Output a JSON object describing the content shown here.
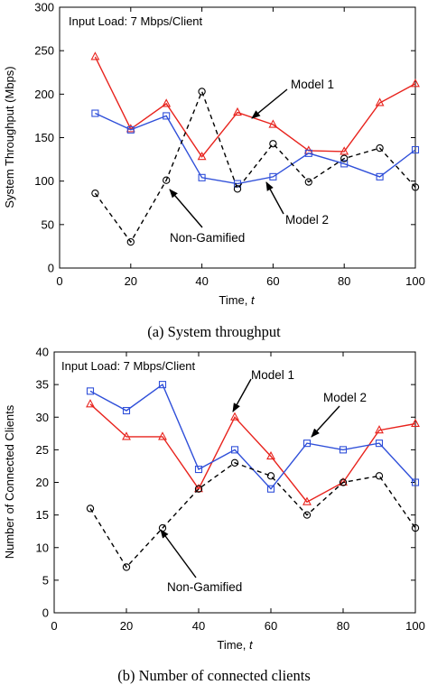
{
  "chart_data": [
    {
      "type": "line",
      "caption": "(a) System throughput",
      "xlabel": "Time, ",
      "xlabel_var": "t",
      "ylabel": "System Throughput (Mbps)",
      "xlim": [
        0,
        100
      ],
      "ylim": [
        0,
        300
      ],
      "xticks": [
        0,
        20,
        40,
        60,
        80,
        100
      ],
      "yticks": [
        0,
        50,
        100,
        150,
        200,
        250,
        300
      ],
      "grid": false,
      "inset_label": "Input Load: 7 Mbps/Client",
      "x": [
        10,
        20,
        30,
        40,
        50,
        60,
        70,
        80,
        90,
        100
      ],
      "series": [
        {
          "id": "model1",
          "color": "#e8231d",
          "dash": "solid",
          "marker": "triangle",
          "values": [
            243,
            160,
            189,
            128,
            179,
            165,
            135,
            134,
            190,
            212
          ]
        },
        {
          "id": "model2",
          "color": "#2f4fd9",
          "dash": "solid",
          "marker": "square",
          "values": [
            178,
            159,
            175,
            104,
            97,
            105,
            132,
            120,
            105,
            136
          ]
        },
        {
          "id": "nongamified",
          "color": "#000000",
          "dash": "dashed",
          "marker": "circle",
          "values": [
            86,
            30,
            101,
            203,
            91,
            143,
            99,
            126,
            138,
            93
          ]
        }
      ],
      "annotations": [
        {
          "text": "Model 1",
          "target_series": "model1"
        },
        {
          "text": "Model 2",
          "target_series": "model2"
        },
        {
          "text": "Non-Gamified",
          "target_series": "nongamified"
        }
      ]
    },
    {
      "type": "line",
      "caption": "(b) Number of connected clients",
      "xlabel": "Time, ",
      "xlabel_var": "t",
      "ylabel": "Number of Connected Clients",
      "xlim": [
        0,
        100
      ],
      "ylim": [
        0,
        40
      ],
      "xticks": [
        0,
        20,
        40,
        60,
        80,
        100
      ],
      "yticks": [
        0,
        5,
        10,
        15,
        20,
        25,
        30,
        35,
        40
      ],
      "grid": false,
      "inset_label": "Input Load: 7 Mbps/Client",
      "x": [
        10,
        20,
        30,
        40,
        50,
        60,
        70,
        80,
        90,
        100
      ],
      "series": [
        {
          "id": "model1",
          "color": "#e8231d",
          "dash": "solid",
          "marker": "triangle",
          "values": [
            32,
            27,
            27,
            19,
            30,
            24,
            17,
            20,
            28,
            29
          ]
        },
        {
          "id": "model2",
          "color": "#2f4fd9",
          "dash": "solid",
          "marker": "square",
          "values": [
            34,
            31,
            35,
            22,
            25,
            19,
            26,
            25,
            26,
            20
          ]
        },
        {
          "id": "nongamified",
          "color": "#000000",
          "dash": "dashed",
          "marker": "circle",
          "values": [
            16,
            7,
            13,
            19,
            23,
            21,
            15,
            20,
            21,
            13
          ]
        }
      ],
      "annotations": [
        {
          "text": "Model 1",
          "target_series": "model1"
        },
        {
          "text": "Model 2",
          "target_series": "model2"
        },
        {
          "text": "Non-Gamified",
          "target_series": "nongamified"
        }
      ]
    }
  ]
}
